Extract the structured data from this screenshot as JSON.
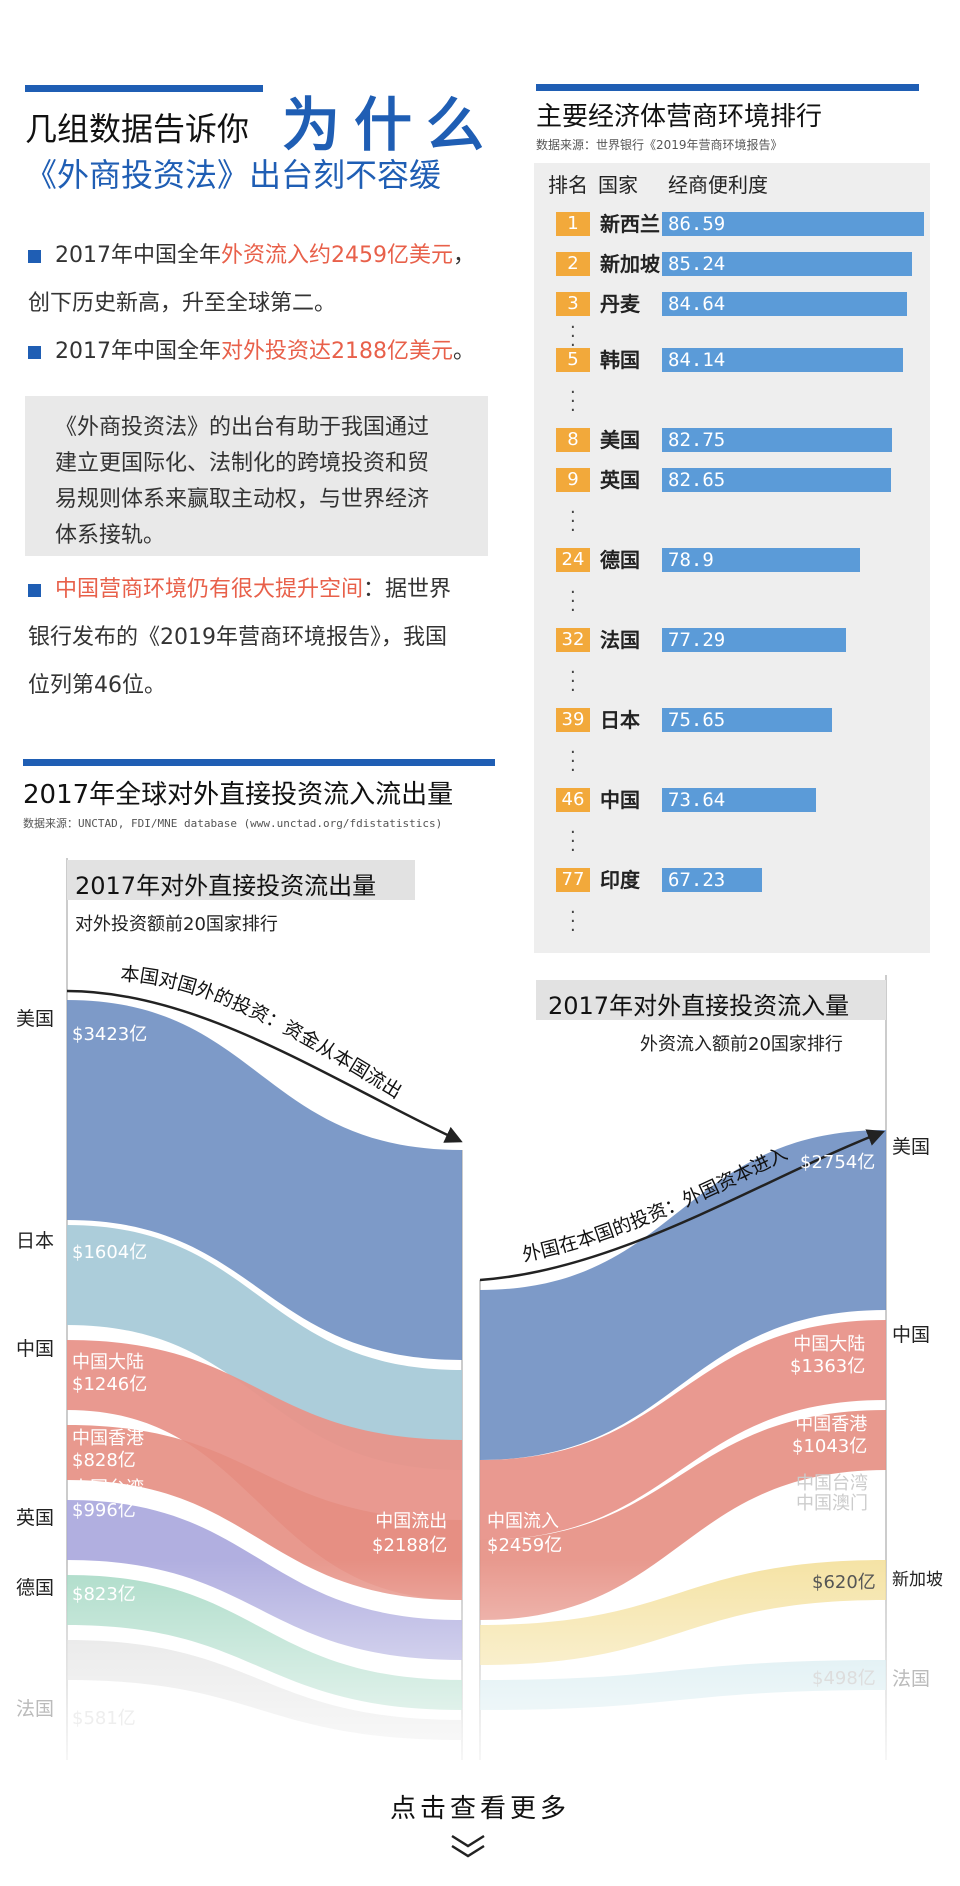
{
  "header": {
    "line1": "几组数据告诉你",
    "big": "为什么",
    "line2": "《外商投资法》出台刻不容缓"
  },
  "bullets": [
    {
      "pre": "2017年中国全年",
      "hl": "外资流入约2459亿美元",
      "post": "，",
      "line2": "创下历史新高，升至全球第二。"
    },
    {
      "pre": "2017年中国全年",
      "hl": "对外投资达2188亿美元",
      "post": "。"
    }
  ],
  "quote": [
    "《外商投资法》的出台有助于我国通过",
    "建立更国际化、法制化的跨境投资和贸",
    "易规则体系来赢取主动权，与世界经济",
    "体系接轨。"
  ],
  "bullet3": {
    "hl": "中国营商环境仍有很大提升空间",
    "post": "：据世界",
    "line2": "银行发布的《2019年营商环境报告》，我国",
    "line3": "位列第46位。"
  },
  "ranking": {
    "title": "主要经济体营商环境排行",
    "source": "数据来源：世界银行《2019年营商环境报告》",
    "col_rank": "排名",
    "col_country": "国家",
    "col_score": "经商便利度",
    "rows": [
      {
        "rank": "1",
        "country": "新西兰",
        "score": "86.59"
      },
      {
        "rank": "2",
        "country": "新加坡",
        "score": "85.24"
      },
      {
        "rank": "3",
        "country": "丹麦",
        "score": "84.64"
      },
      {
        "rank": "5",
        "country": "韩国",
        "score": "84.14"
      },
      {
        "rank": "8",
        "country": "美国",
        "score": "82.75"
      },
      {
        "rank": "9",
        "country": "英国",
        "score": "82.65"
      },
      {
        "rank": "24",
        "country": "德国",
        "score": "78.9"
      },
      {
        "rank": "32",
        "country": "法国",
        "score": "77.29"
      },
      {
        "rank": "39",
        "country": "日本",
        "score": "75.65"
      },
      {
        "rank": "46",
        "country": "中国",
        "score": "73.64"
      },
      {
        "rank": "77",
        "country": "印度",
        "score": "67.23"
      }
    ]
  },
  "fdi": {
    "title": "2017年全球对外直接投资流入流出量",
    "source": "数据来源：UNCTAD, FDI/MNE database (www.unctad.org/fdistatistics)",
    "outflow": {
      "title": "2017年对外直接投资流出量",
      "subtitle": "对外投资额前20国家排行",
      "arrow_label": "本国对国外的投资：资金从本国流出",
      "countries": [
        "美国",
        "日本",
        "中国",
        "英国",
        "德国",
        "法国"
      ],
      "values": [
        "$3423亿",
        "$1604亿",
        "中国大陆",
        "$1246亿",
        "中国香港",
        "$828亿",
        "中国台湾",
        "$996亿",
        "$823亿",
        "$581亿"
      ],
      "target": "中国流出",
      "target_value": "$2188亿"
    },
    "inflow": {
      "title": "2017年对外直接投资流入量",
      "subtitle": "外资流入额前20国家排行",
      "arrow_label": "外国在本国的投资：外国资本进入",
      "countries": [
        "美国",
        "中国",
        "新加坡",
        "法国"
      ],
      "values": [
        "$2754亿",
        "中国大陆",
        "$1363亿",
        "中国香港",
        "$1043亿",
        "中国台湾",
        "中国澳门",
        "$620亿",
        "$498亿"
      ],
      "source": "中国流入",
      "source_value": "$2459亿"
    }
  },
  "footer": {
    "more": "点击查看更多"
  },
  "colors": {
    "accent": "#1f5eb4",
    "highlight": "#e8604a",
    "badge": "#f2a93b",
    "bar": "#5b9bd8"
  }
}
